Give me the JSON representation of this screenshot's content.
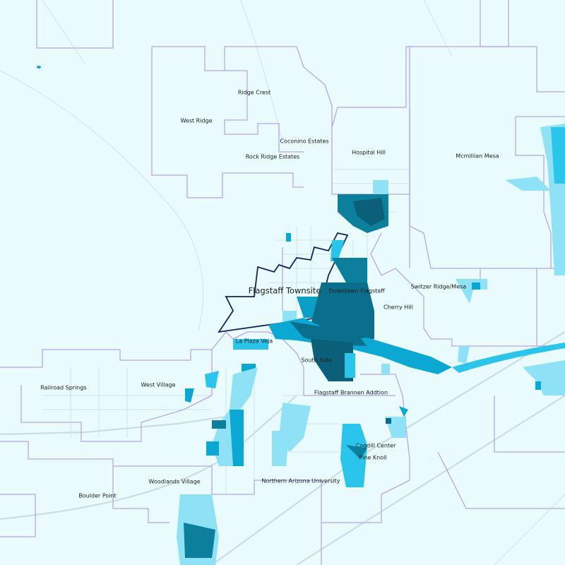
{
  "map": {
    "labels": {
      "ridge_crest": "Ridge Crest",
      "west_ridge": "West Ridge",
      "coconino_estates": "Coconino Estates",
      "rock_ridge_estates": "Rock Ridge Estates",
      "hospital_hill": "Hospital Hill",
      "mcmillian_mesa": "Mcmillian Mesa",
      "flagstaff_townsite": "Flagstaff Townsite",
      "downtown_flagstaff": "Downtown Flagstaff",
      "switzer_ridge_mesa": "Switzer Ridge/Mesa",
      "cherry_hill": "Cherry Hill",
      "la_plaza_veja": "La Plaza Veja",
      "south_side": "South Side",
      "railroad_springs": "Railroad Springs",
      "west_village": "West Village",
      "flagstaff_brannen_addtion": "Flagstaff Brannen Addtion",
      "cogdill_center": "Cogdill Center",
      "pine_knoll": "Pine Knoll",
      "woodlands_village": "Woodlands Village",
      "northern_arizona_university": "Northern Arizona University",
      "boulder_point": "Boulder Point"
    }
  }
}
